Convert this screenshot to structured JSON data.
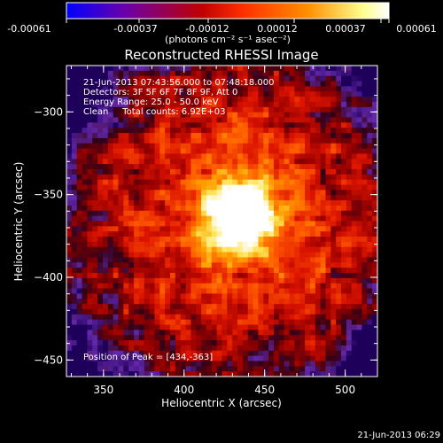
{
  "colorbar": {
    "ticks": [
      "-0.00061",
      "-0.00037",
      "-0.00012",
      "0.00012",
      "0.00037",
      "0.00061"
    ],
    "unit_label": "(photons cm⁻² s⁻¹ asec⁻²)",
    "colors": [
      "#0000ff",
      "#6a00aa",
      "#c00000",
      "#ff3000",
      "#ff9000",
      "#ffff90",
      "#ffffff"
    ]
  },
  "chart_data": {
    "type": "heatmap",
    "title": "Reconstructed RHESSI Image",
    "xlabel": "Heliocentric X (arcsec)",
    "ylabel": "Heliocentric Y (arcsec)",
    "xlim": [
      327,
      520
    ],
    "ylim": [
      -460,
      -272
    ],
    "xticks": [
      350,
      400,
      450,
      500
    ],
    "yticks": [
      -300,
      -350,
      -400,
      -450
    ],
    "peak": [
      434,
      -363
    ],
    "info_lines": [
      "21-Jun-2013 07:43:56.000 to 07:48:18.000",
      "Detectors: 3F 5F 6F 7F 8F 9F, Att 0",
      "Energy Range: 25.0 - 50.0 keV",
      "Clean     Total counts: 6.92E+03"
    ],
    "peak_label": "Position of Peak = [434,-363]"
  },
  "footer": {
    "timestamp": "21-Jun-2013 06:29"
  }
}
